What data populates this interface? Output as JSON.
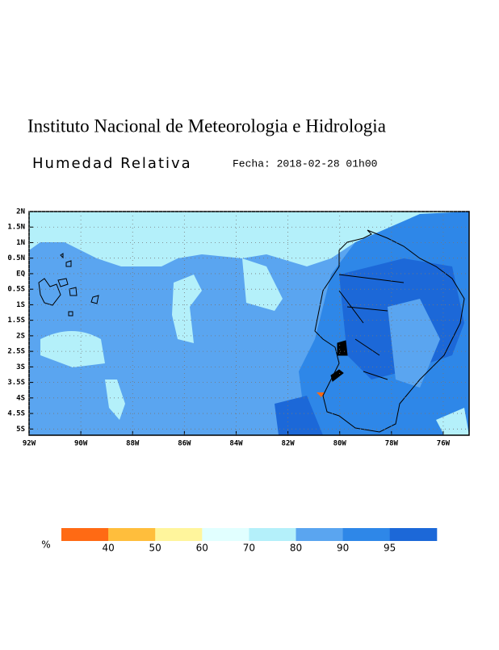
{
  "header": {
    "institution": "Instituto Nacional de Meteorologia e Hidrologia",
    "variable": "Humedad Relativa",
    "date": "Fecha: 2018-02-28 01h00"
  },
  "map": {
    "xlim": [
      -92,
      -75
    ],
    "ylim": [
      -5.2,
      2
    ],
    "yticks": [
      {
        "value": 2,
        "label": "2N"
      },
      {
        "value": 1.5,
        "label": "1.5N"
      },
      {
        "value": 1,
        "label": "1N"
      },
      {
        "value": 0.5,
        "label": "0.5N"
      },
      {
        "value": 0,
        "label": "EQ"
      },
      {
        "value": -0.5,
        "label": "0.5S"
      },
      {
        "value": -1,
        "label": "1S"
      },
      {
        "value": -1.5,
        "label": "1.5S"
      },
      {
        "value": -2,
        "label": "2S"
      },
      {
        "value": -2.5,
        "label": "2.5S"
      },
      {
        "value": -3,
        "label": "3S"
      },
      {
        "value": -3.5,
        "label": "3.5S"
      },
      {
        "value": -4,
        "label": "4S"
      },
      {
        "value": -4.5,
        "label": "4.5S"
      },
      {
        "value": -5,
        "label": "5S"
      }
    ],
    "xticks": [
      {
        "value": -92,
        "label": "92W"
      },
      {
        "value": -90,
        "label": "90W"
      },
      {
        "value": -88,
        "label": "88W"
      },
      {
        "value": -86,
        "label": "86W"
      },
      {
        "value": -84,
        "label": "84W"
      },
      {
        "value": -82,
        "label": "82W"
      },
      {
        "value": -80,
        "label": "80W"
      },
      {
        "value": -78,
        "label": "78W"
      },
      {
        "value": -76,
        "label": "76W"
      }
    ],
    "grid": true
  },
  "colorbar": {
    "unit": "%",
    "colors": [
      "#ff6a14",
      "#ffbe3c",
      "#fff59c",
      "#e1ffff",
      "#b4f0fa",
      "#5aa5f0",
      "#2e87e8",
      "#1c68d8"
    ],
    "labels": [
      40,
      50,
      60,
      70,
      80,
      90,
      95
    ]
  }
}
